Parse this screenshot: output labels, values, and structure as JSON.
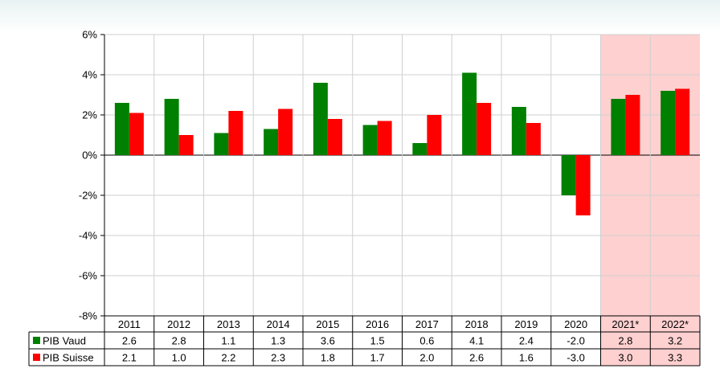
{
  "chart_data": {
    "type": "bar",
    "categories": [
      "2011",
      "2012",
      "2013",
      "2014",
      "2015",
      "2016",
      "2017",
      "2018",
      "2019",
      "2020",
      "2021*",
      "2022*"
    ],
    "forecast_categories": [
      "2021*",
      "2022*"
    ],
    "series": [
      {
        "name": "PIB Vaud",
        "color": "#008000",
        "values": [
          2.6,
          2.8,
          1.1,
          1.3,
          3.6,
          1.5,
          0.6,
          4.1,
          2.4,
          -2.0,
          2.8,
          3.2
        ]
      },
      {
        "name": "PIB Suisse",
        "color": "#ff0000",
        "values": [
          2.1,
          1.0,
          2.2,
          2.3,
          1.8,
          1.7,
          2.0,
          2.6,
          1.6,
          -3.0,
          3.0,
          3.3
        ]
      }
    ],
    "table_values": [
      [
        "2.6",
        "2.8",
        "1.1",
        "1.3",
        "3.6",
        "1.5",
        "0.6",
        "4.1",
        "2.4",
        "-2.0",
        "2.8",
        "3.2"
      ],
      [
        "2.1",
        "1.0",
        "2.2",
        "2.3",
        "1.8",
        "1.7",
        "2.0",
        "2.6",
        "1.6",
        "-3.0",
        "3.0",
        "3.3"
      ]
    ],
    "yticks": [
      "6%",
      "4%",
      "2%",
      "0%",
      "-2%",
      "-4%",
      "-6%",
      "-8%"
    ],
    "ylim": [
      -8,
      6
    ],
    "ytick_step": 2,
    "grid": true,
    "legend": "data-table",
    "forecast_color": "#ffd0d0"
  }
}
